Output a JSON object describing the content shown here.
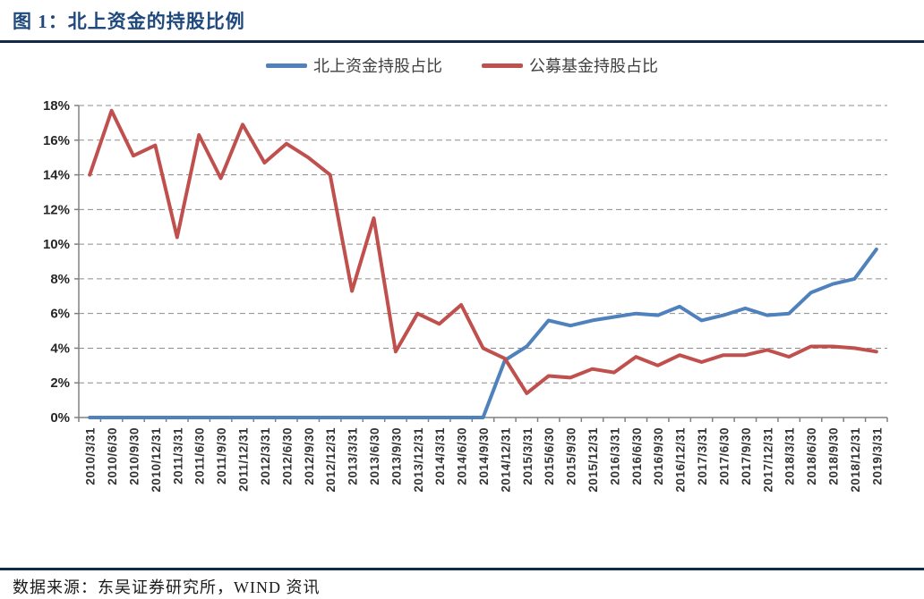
{
  "page": {
    "title": "图 1：北上资金的持股比例",
    "source": "数据来源：东吴证券研究所，WIND 资讯"
  },
  "chart_data": {
    "type": "line",
    "title": "",
    "xlabel": "",
    "ylabel": "",
    "ylim": [
      0,
      18
    ],
    "ytick_step": 2,
    "ytick_suffix": "%",
    "grid": "horizontal-dashed",
    "legend_position": "top-center",
    "categories": [
      "2010/3/31",
      "2010/6/30",
      "2010/9/30",
      "2010/12/31",
      "2011/3/31",
      "2011/6/30",
      "2011/9/30",
      "2011/12/31",
      "2012/3/31",
      "2012/6/30",
      "2012/9/30",
      "2012/12/31",
      "2013/3/31",
      "2013/6/30",
      "2013/9/30",
      "2013/12/31",
      "2014/3/31",
      "2014/6/30",
      "2014/9/30",
      "2014/12/31",
      "2015/3/31",
      "2015/6/30",
      "2015/9/30",
      "2015/12/31",
      "2016/3/31",
      "2016/6/30",
      "2016/9/30",
      "2016/12/31",
      "2017/3/31",
      "2017/6/30",
      "2017/9/30",
      "2017/12/31",
      "2018/3/31",
      "2018/6/30",
      "2018/9/30",
      "2018/12/31",
      "2019/3/31"
    ],
    "series": [
      {
        "name": "北上资金持股占比",
        "color": "#4f81bd",
        "values": [
          0,
          0,
          0,
          0,
          0,
          0,
          0,
          0,
          0,
          0,
          0,
          0,
          0,
          0,
          0,
          0,
          0,
          0,
          0,
          3.3,
          4.1,
          5.6,
          5.3,
          5.6,
          5.8,
          6.0,
          5.9,
          6.4,
          5.6,
          5.9,
          6.3,
          5.9,
          6.0,
          7.2,
          7.7,
          8.0,
          9.7
        ]
      },
      {
        "name": "公募基金持股占比",
        "color": "#c0504d",
        "values": [
          14.0,
          17.7,
          15.1,
          15.7,
          10.4,
          16.3,
          13.8,
          16.9,
          14.7,
          15.8,
          15.0,
          14.0,
          7.3,
          11.5,
          3.8,
          6.0,
          5.4,
          6.5,
          4.0,
          3.4,
          1.4,
          2.4,
          2.3,
          2.8,
          2.6,
          3.5,
          3.0,
          3.6,
          3.2,
          3.6,
          3.6,
          3.9,
          3.5,
          4.1,
          4.1,
          4.0,
          3.8
        ]
      }
    ]
  }
}
